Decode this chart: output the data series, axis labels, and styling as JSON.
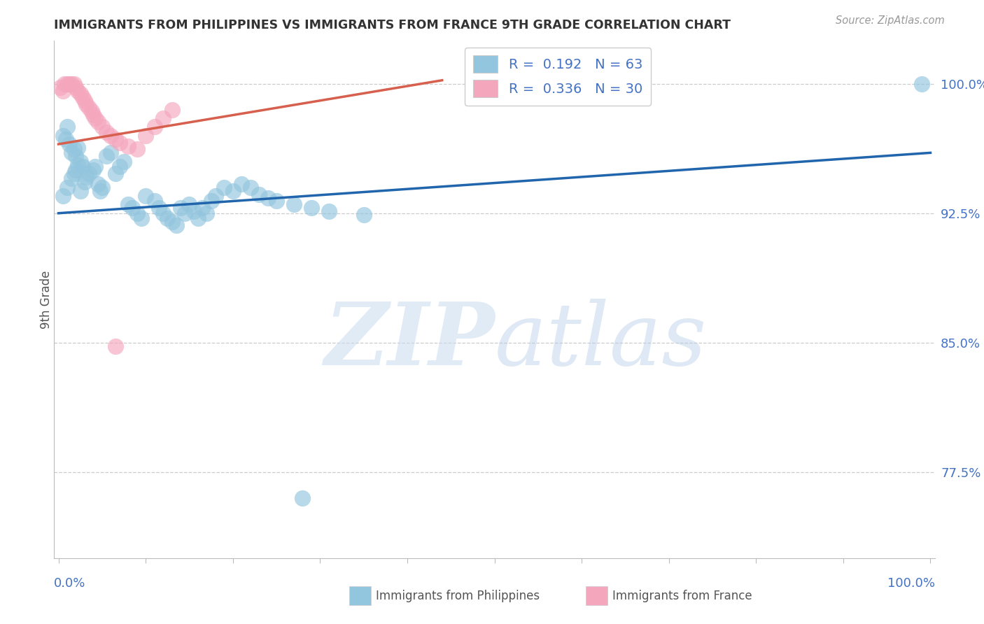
{
  "title": "IMMIGRANTS FROM PHILIPPINES VS IMMIGRANTS FROM FRANCE 9TH GRADE CORRELATION CHART",
  "source": "Source: ZipAtlas.com",
  "ylabel": "9th Grade",
  "yticks": [
    0.775,
    0.85,
    0.925,
    1.0
  ],
  "ytick_labels": [
    "77.5%",
    "85.0%",
    "92.5%",
    "100.0%"
  ],
  "xlim": [
    -0.005,
    1.005
  ],
  "ylim": [
    0.725,
    1.025
  ],
  "blue_color": "#92C5DE",
  "pink_color": "#F4A6BD",
  "blue_line_color": "#2166AC",
  "pink_line_color": "#D6604D",
  "watermark_color": "#D0E4F5",
  "philippines_x": [
    0.005,
    0.008,
    0.01,
    0.012,
    0.015,
    0.018,
    0.02,
    0.022,
    0.025,
    0.028,
    0.005,
    0.01,
    0.015,
    0.018,
    0.02,
    0.022,
    0.025,
    0.03,
    0.032,
    0.035,
    0.04,
    0.042,
    0.045,
    0.048,
    0.05,
    0.055,
    0.06,
    0.065,
    0.07,
    0.075,
    0.08,
    0.085,
    0.09,
    0.095,
    0.1,
    0.11,
    0.115,
    0.12,
    0.125,
    0.13,
    0.135,
    0.14,
    0.145,
    0.15,
    0.155,
    0.16,
    0.165,
    0.17,
    0.175,
    0.18,
    0.19,
    0.2,
    0.21,
    0.22,
    0.23,
    0.24,
    0.25,
    0.27,
    0.29,
    0.31,
    0.35,
    0.99,
    0.28
  ],
  "philippines_y": [
    0.97,
    0.968,
    0.975,
    0.965,
    0.96,
    0.962,
    0.958,
    0.963,
    0.955,
    0.952,
    0.935,
    0.94,
    0.945,
    0.948,
    0.95,
    0.953,
    0.938,
    0.943,
    0.946,
    0.948,
    0.95,
    0.952,
    0.942,
    0.938,
    0.94,
    0.958,
    0.96,
    0.948,
    0.952,
    0.955,
    0.93,
    0.928,
    0.925,
    0.922,
    0.935,
    0.932,
    0.928,
    0.925,
    0.922,
    0.92,
    0.918,
    0.928,
    0.925,
    0.93,
    0.926,
    0.922,
    0.928,
    0.925,
    0.932,
    0.935,
    0.94,
    0.938,
    0.942,
    0.94,
    0.936,
    0.934,
    0.932,
    0.93,
    0.928,
    0.926,
    0.924,
    1.0,
    0.76
  ],
  "france_x": [
    0.002,
    0.005,
    0.007,
    0.01,
    0.012,
    0.015,
    0.018,
    0.02,
    0.022,
    0.025,
    0.028,
    0.03,
    0.032,
    0.035,
    0.038,
    0.04,
    0.042,
    0.045,
    0.05,
    0.055,
    0.06,
    0.065,
    0.07,
    0.08,
    0.09,
    0.1,
    0.11,
    0.12,
    0.13,
    0.065
  ],
  "france_y": [
    0.998,
    0.996,
    1.0,
    1.0,
    1.0,
    1.0,
    1.0,
    0.998,
    0.996,
    0.994,
    0.992,
    0.99,
    0.988,
    0.986,
    0.984,
    0.982,
    0.98,
    0.978,
    0.975,
    0.972,
    0.97,
    0.968,
    0.966,
    0.964,
    0.962,
    0.97,
    0.975,
    0.98,
    0.985,
    0.848
  ],
  "blue_line": [
    0.0,
    1.0,
    0.925,
    0.96
  ],
  "pink_line": [
    0.0,
    0.44,
    0.965,
    1.002
  ],
  "legend_entries": [
    {
      "color": "#92C5DE",
      "label": "R =  0.192   N = 63"
    },
    {
      "color": "#F4A6BD",
      "label": "R =  0.336   N = 30"
    }
  ],
  "bottom_legend": [
    {
      "color": "#92C5DE",
      "label": "Immigrants from Philippines"
    },
    {
      "color": "#F4A6BD",
      "label": "Immigrants from France"
    }
  ]
}
